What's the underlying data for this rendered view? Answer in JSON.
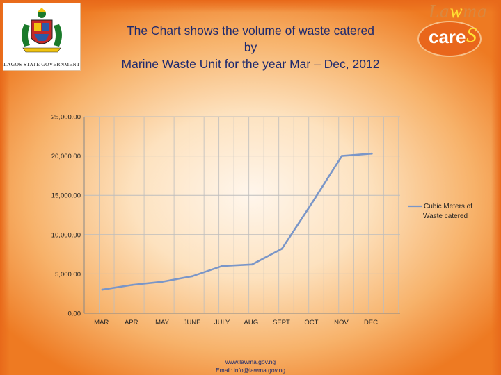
{
  "header": {
    "title_line1": "The Chart shows the volume of waste catered",
    "title_line2": "by",
    "title_line3": "Marine Waste Unit for the year Mar – Dec, 2012"
  },
  "crest": {
    "caption": "LAGOS STATE GOVERNMENT"
  },
  "brand": {
    "wordmark": "Lawma",
    "badge": "cares"
  },
  "footer": {
    "website": "www.lawma.gov.ng",
    "email": "Email: info@lawma.gov.ng"
  },
  "colors": {
    "series_line": "#7a96c8",
    "grid": "#bdbdbd",
    "accent_orange": "#ee7a22"
  },
  "chart_data": {
    "type": "line",
    "title": "The Chart shows the volume of waste catered by Marine Waste Unit for the year Mar – Dec, 2012",
    "categories": [
      "MAR.",
      "APR.",
      "MAY",
      "JUNE",
      "JULY",
      "AUG.",
      "SEPT.",
      "OCT.",
      "NOV.",
      "DEC."
    ],
    "series": [
      {
        "name": "Cubic Meters of Waste catered",
        "values": [
          3000,
          3600,
          4000,
          4700,
          6000,
          6200,
          8200,
          14000,
          20000,
          20300
        ]
      }
    ],
    "y_ticks": [
      "0.00",
      "5,000.00",
      "10,000.00",
      "15,000.00",
      "20,000.00",
      "25,000.00"
    ],
    "ylim": [
      0,
      25000
    ],
    "grid": true,
    "legend": {
      "position": "right",
      "lines": [
        "Cubic Meters of",
        "Waste catered"
      ]
    }
  }
}
